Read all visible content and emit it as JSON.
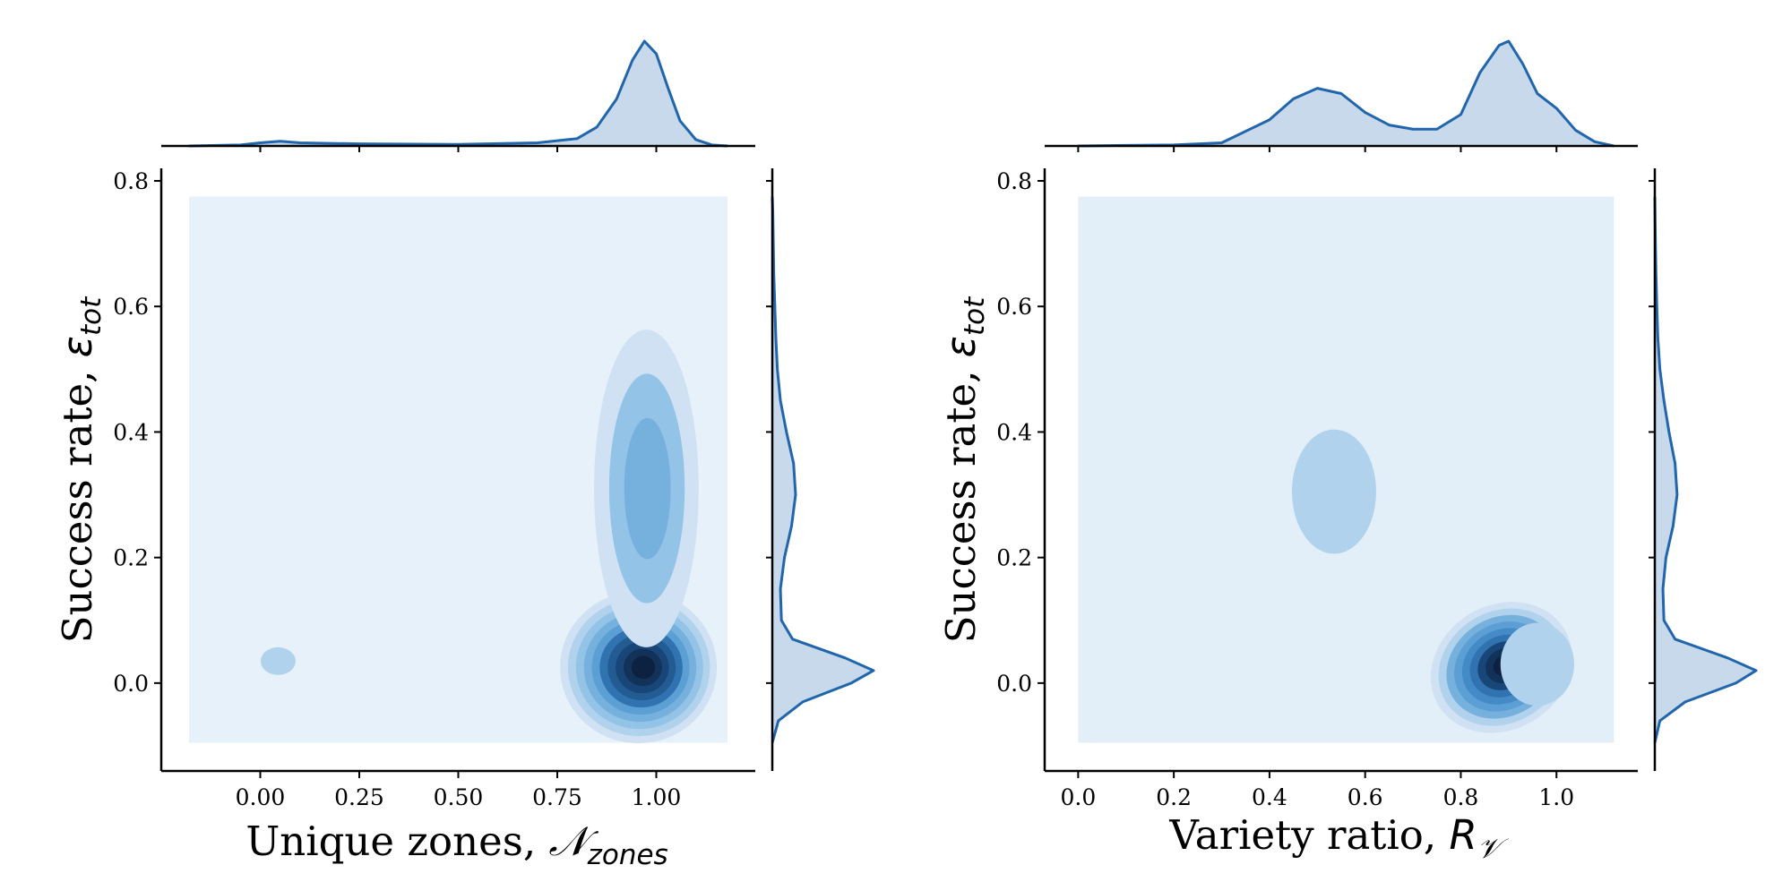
{
  "chart_data": [
    {
      "type": "kde-joint",
      "xlabel": "Unique zones,",
      "xlabel_math": "𝒩",
      "xlabel_sub": "zones",
      "ylabel": "Success rate,",
      "ylabel_math": "ε",
      "ylabel_sub": "tot",
      "xlim": [
        -0.25,
        1.25
      ],
      "ylim": [
        -0.14,
        0.82
      ],
      "xticks": [
        "0.00",
        "0.25",
        "0.50",
        "0.75",
        "1.00"
      ],
      "xtick_values": [
        0,
        0.25,
        0.5,
        0.75,
        1.0
      ],
      "yticks": [
        "0.0",
        "0.2",
        "0.4",
        "0.6",
        "0.8"
      ],
      "ytick_values": [
        0,
        0.2,
        0.4,
        0.6,
        0.8
      ],
      "background_extent": {
        "x": [
          -0.18,
          1.18
        ],
        "y": [
          -0.095,
          0.775
        ]
      },
      "clusters": [
        {
          "cx": 0.955,
          "cy": 0.025,
          "sx": 0.09,
          "sy": 0.055,
          "levels": 10,
          "peak": 1.0
        },
        {
          "cx": 0.975,
          "cy": 0.31,
          "sx": 0.06,
          "sy": 0.115,
          "levels": 3,
          "peak": 0.3
        },
        {
          "cx": 0.045,
          "cy": 0.035,
          "sx": 0.02,
          "sy": 0.01,
          "levels": 1,
          "peak": 0.1
        }
      ],
      "x_marginal": {
        "x": [
          -0.18,
          -0.05,
          0.0,
          0.05,
          0.1,
          0.25,
          0.5,
          0.7,
          0.8,
          0.85,
          0.9,
          0.94,
          0.97,
          1.0,
          1.03,
          1.06,
          1.1,
          1.14,
          1.18
        ],
        "density": [
          0.0,
          0.01,
          0.03,
          0.045,
          0.03,
          0.02,
          0.015,
          0.03,
          0.07,
          0.18,
          0.45,
          0.82,
          1.0,
          0.88,
          0.55,
          0.24,
          0.06,
          0.01,
          0.0
        ]
      },
      "y_marginal": {
        "y": [
          -0.095,
          -0.06,
          -0.03,
          0.0,
          0.02,
          0.04,
          0.07,
          0.1,
          0.15,
          0.2,
          0.25,
          0.3,
          0.35,
          0.4,
          0.45,
          0.5,
          0.55,
          0.6,
          0.65,
          0.7,
          0.75,
          0.775
        ],
        "density": [
          0.0,
          0.06,
          0.3,
          0.78,
          1.0,
          0.72,
          0.2,
          0.09,
          0.08,
          0.12,
          0.19,
          0.23,
          0.21,
          0.14,
          0.08,
          0.05,
          0.035,
          0.025,
          0.015,
          0.01,
          0.005,
          0.0
        ]
      }
    },
    {
      "type": "kde-joint",
      "xlabel": "Variety ratio,",
      "xlabel_math": "R",
      "xlabel_sub": "𝒱",
      "ylabel": "Success rate,",
      "ylabel_math": "ε",
      "ylabel_sub": "tot",
      "xlim": [
        -0.07,
        1.17
      ],
      "ylim": [
        -0.14,
        0.82
      ],
      "xticks": [
        "0.0",
        "0.2",
        "0.4",
        "0.6",
        "0.8",
        "1.0"
      ],
      "xtick_values": [
        0,
        0.2,
        0.4,
        0.6,
        0.8,
        1.0
      ],
      "yticks": [
        "0.0",
        "0.2",
        "0.4",
        "0.6",
        "0.8"
      ],
      "ytick_values": [
        0,
        0.2,
        0.4,
        0.6,
        0.8
      ],
      "background_extent": {
        "x": [
          0.0,
          1.12
        ],
        "y": [
          -0.095,
          0.775
        ]
      },
      "clusters": [
        {
          "cx": 0.885,
          "cy": 0.025,
          "sx": 0.07,
          "sy": 0.045,
          "levels": 9,
          "peak": 1.0,
          "rot": -0.55
        },
        {
          "cx": 0.96,
          "cy": 0.03,
          "sx": 0.035,
          "sy": 0.03,
          "levels": 1,
          "peak": 0.12
        },
        {
          "cx": 0.535,
          "cy": 0.305,
          "sx": 0.04,
          "sy": 0.045,
          "levels": 1,
          "peak": 0.12
        }
      ],
      "x_marginal": {
        "x": [
          0.0,
          0.1,
          0.2,
          0.3,
          0.4,
          0.45,
          0.5,
          0.55,
          0.6,
          0.65,
          0.7,
          0.75,
          0.8,
          0.84,
          0.88,
          0.9,
          0.93,
          0.96,
          1.0,
          1.04,
          1.08,
          1.12
        ],
        "density": [
          0.0,
          0.005,
          0.01,
          0.03,
          0.25,
          0.45,
          0.55,
          0.5,
          0.32,
          0.2,
          0.16,
          0.16,
          0.3,
          0.7,
          0.96,
          1.0,
          0.78,
          0.5,
          0.36,
          0.15,
          0.04,
          0.0
        ]
      },
      "y_marginal": {
        "y": [
          -0.095,
          -0.06,
          -0.03,
          0.0,
          0.02,
          0.04,
          0.07,
          0.1,
          0.15,
          0.2,
          0.25,
          0.3,
          0.35,
          0.4,
          0.45,
          0.5,
          0.55,
          0.6,
          0.65,
          0.7,
          0.775
        ],
        "density": [
          0.0,
          0.05,
          0.3,
          0.8,
          1.0,
          0.72,
          0.2,
          0.09,
          0.08,
          0.11,
          0.18,
          0.22,
          0.2,
          0.14,
          0.09,
          0.05,
          0.03,
          0.02,
          0.012,
          0.006,
          0.0
        ]
      }
    }
  ]
}
